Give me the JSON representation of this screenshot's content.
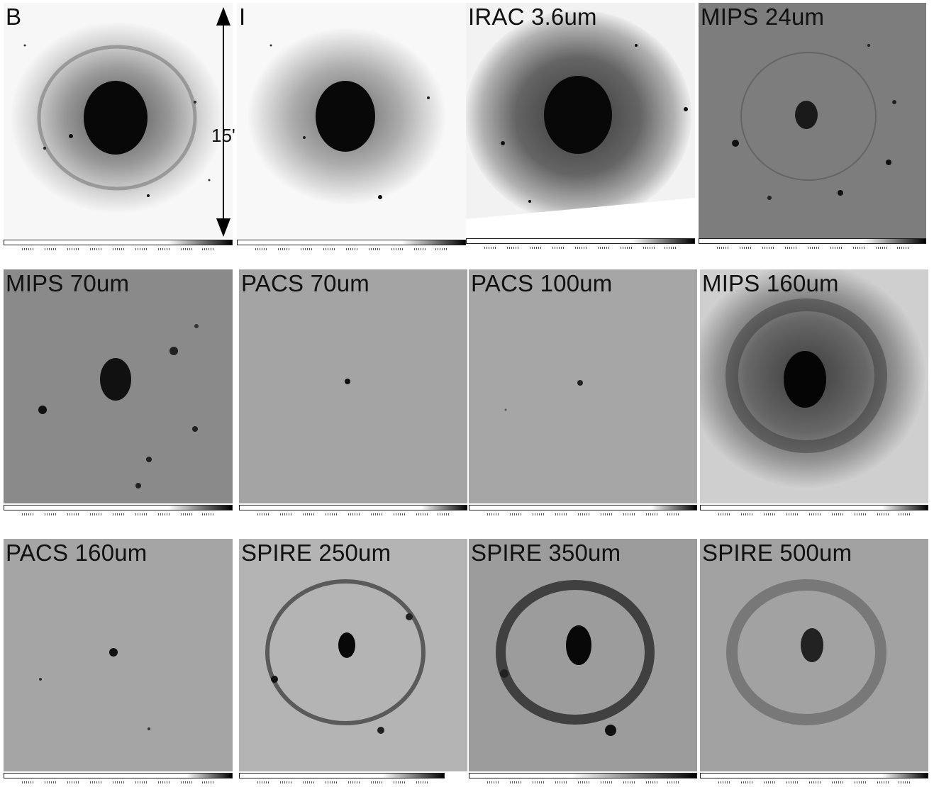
{
  "panels": [
    {
      "label": "B"
    },
    {
      "label": "I"
    },
    {
      "label": "IRAC 3.6um"
    },
    {
      "label": "MIPS 24um"
    },
    {
      "label": "MIPS 70um"
    },
    {
      "label": "PACS 70um"
    },
    {
      "label": "PACS 100um"
    },
    {
      "label": "MIPS 160um"
    },
    {
      "label": "PACS 160um"
    },
    {
      "label": "SPIRE 250um"
    },
    {
      "label": "SPIRE 350um"
    },
    {
      "label": "SPIRE 500um"
    }
  ],
  "scale_bar": {
    "label": "15'"
  },
  "colors": {
    "ink": "#000000",
    "paper": "#ffffff"
  }
}
